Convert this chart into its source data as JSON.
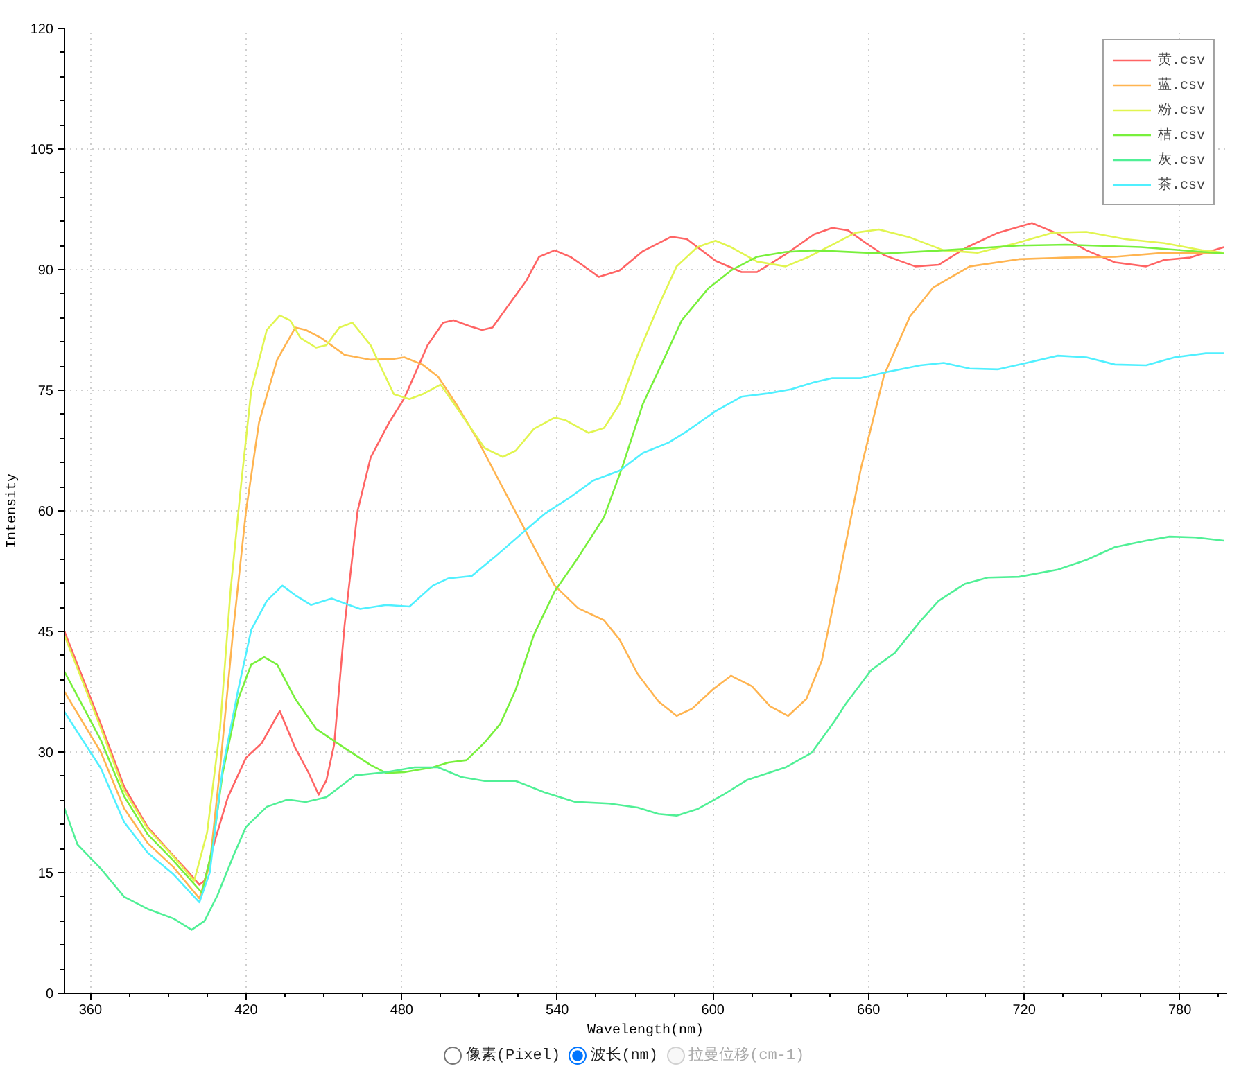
{
  "chart_data": {
    "type": "line",
    "xlabel": "Wavelength(nm)",
    "ylabel": "Intensity",
    "xlim": [
      350,
      798
    ],
    "ylim": [
      0,
      120
    ],
    "xticks": [
      360,
      420,
      480,
      540,
      600,
      660,
      720,
      780
    ],
    "yticks": [
      0,
      15,
      30,
      45,
      60,
      75,
      90,
      105,
      120
    ],
    "grid": true,
    "legend": "top right",
    "line_style": "solid",
    "annotations": [
      "像素(Pixel)",
      "波长(nm)",
      "拉曼位移(cm-1)"
    ],
    "series": [
      {
        "name": "黄.csv",
        "color": "#ff6464",
        "x": [
          350,
          364,
          373,
          382,
          392,
          398,
          402,
          404,
          408,
          413,
          420,
          426,
          433,
          439,
          444,
          448,
          451,
          454,
          458,
          463,
          468,
          475,
          481,
          490,
          496,
          500,
          506,
          511,
          515,
          521,
          528,
          533,
          539,
          545,
          550,
          556,
          564,
          573,
          584,
          590,
          601,
          611,
          617,
          628,
          639,
          646,
          652,
          659,
          666,
          678,
          687,
          698,
          710,
          723,
          732,
          744,
          755,
          767,
          774,
          784,
          797
        ],
        "values": [
          45,
          33.5,
          25.7,
          20.7,
          17.1,
          15,
          13.5,
          14,
          19,
          24.4,
          29.3,
          31.1,
          35.1,
          30.5,
          27.5,
          24.7,
          26.5,
          31,
          45.8,
          60,
          66.6,
          70.9,
          74,
          80.6,
          83.4,
          83.7,
          83,
          82.5,
          82.8,
          85.5,
          88.6,
          91.6,
          92.4,
          91.6,
          90.5,
          89.1,
          89.9,
          92.3,
          94.1,
          93.8,
          91.1,
          89.7,
          89.7,
          91.9,
          94.4,
          95.2,
          94.9,
          93.3,
          91.8,
          90.4,
          90.6,
          92.8,
          94.6,
          95.8,
          94.6,
          92.4,
          90.9,
          90.4,
          91.2,
          91.5,
          92.8
        ]
      },
      {
        "name": "蓝.csv",
        "color": "#ffb450",
        "x": [
          350,
          364,
          373,
          382,
          392,
          402,
          406,
          410,
          415,
          420,
          425,
          432,
          439,
          443,
          449,
          458,
          468,
          477,
          481,
          488,
          494,
          501,
          509,
          516,
          524,
          532,
          539,
          548,
          558,
          564,
          571,
          579,
          586,
          592,
          600,
          607,
          615,
          622,
          629,
          636,
          642,
          649,
          657,
          666,
          676,
          685,
          699,
          718,
          736,
          755,
          774,
          797
        ],
        "values": [
          37.5,
          30,
          23,
          18.7,
          15.7,
          11.8,
          16,
          28,
          45,
          60,
          71,
          78.8,
          82.8,
          82.5,
          81.5,
          79.4,
          78.8,
          78.9,
          79.1,
          78.2,
          76.7,
          73.3,
          69,
          64.7,
          59.8,
          54.9,
          50.7,
          47.9,
          46.4,
          44,
          39.7,
          36.3,
          34.5,
          35.4,
          37.8,
          39.5,
          38.2,
          35.7,
          34.5,
          36.6,
          41.4,
          52.4,
          65.2,
          76.9,
          84.2,
          87.8,
          90.4,
          91.3,
          91.5,
          91.6,
          92.1,
          92
        ]
      },
      {
        "name": "粉.csv",
        "color": "#e1f550",
        "x": [
          350,
          364,
          373,
          382,
          392,
          400,
          405,
          410,
          414,
          418,
          422,
          428,
          433,
          437,
          441,
          447,
          451,
          456,
          461,
          468,
          477,
          483,
          488,
          495,
          503,
          512,
          519,
          524,
          531,
          539,
          543,
          552,
          558,
          564,
          571,
          579,
          586,
          594,
          601,
          607,
          617,
          628,
          637,
          646,
          655,
          664,
          676,
          689,
          702,
          717,
          731,
          744,
          759,
          774,
          789,
          797
        ],
        "values": [
          44.5,
          33,
          25.2,
          20.5,
          17,
          14,
          20,
          33,
          50,
          63,
          75,
          82.5,
          84.3,
          83.7,
          81.5,
          80.3,
          80.6,
          82.8,
          83.4,
          80.6,
          74.5,
          73.9,
          74.5,
          75.7,
          72,
          67.8,
          66.7,
          67.5,
          70.2,
          71.6,
          71.3,
          69.7,
          70.3,
          73.3,
          79.4,
          85.5,
          90.4,
          92.8,
          93.6,
          92.8,
          91,
          90.4,
          91.6,
          93.1,
          94.6,
          95,
          94,
          92.4,
          92.1,
          93.3,
          94.6,
          94.7,
          93.8,
          93.3,
          92.4,
          92.1
        ]
      },
      {
        "name": "桔.csv",
        "color": "#78f03c",
        "x": [
          350,
          364,
          373,
          382,
          392,
          403,
          407,
          411,
          417,
          422,
          427,
          432,
          439,
          447,
          458,
          468,
          474,
          481,
          492,
          498,
          505,
          512,
          518,
          524,
          531,
          539,
          547,
          558,
          565,
          573,
          581,
          588,
          598,
          607,
          617,
          628,
          639,
          666,
          689,
          718,
          736,
          765,
          797
        ],
        "values": [
          40,
          31.5,
          24.5,
          19.8,
          16.5,
          12.5,
          18,
          27.4,
          36.6,
          40.9,
          41.8,
          40.9,
          36.6,
          32.9,
          30.5,
          28.4,
          27.4,
          27.5,
          28.1,
          28.7,
          29,
          31.2,
          33.5,
          37.8,
          44.6,
          50,
          53.7,
          59.2,
          65.4,
          73.3,
          78.8,
          83.7,
          87.6,
          89.9,
          91.6,
          92.2,
          92.4,
          92,
          92.4,
          93,
          93.1,
          92.8,
          92
        ]
      },
      {
        "name": "灰.csv",
        "color": "#50f096",
        "x": [
          350,
          355,
          364,
          373,
          382,
          392,
          399,
          404,
          409,
          415,
          420,
          428,
          436,
          443,
          451,
          462,
          474,
          485,
          494,
          503,
          512,
          524,
          535,
          547,
          560,
          571,
          579,
          586,
          594,
          604,
          613,
          628,
          638,
          647,
          651,
          661,
          670,
          680,
          687,
          697,
          706,
          718,
          733,
          744,
          755,
          767,
          776,
          786,
          797
        ],
        "values": [
          23,
          18.5,
          15.5,
          12,
          10.5,
          9.3,
          7.9,
          9,
          12.2,
          17,
          20.7,
          23.2,
          24.1,
          23.8,
          24.4,
          27.1,
          27.5,
          28.1,
          28.1,
          26.9,
          26.4,
          26.4,
          25,
          23.8,
          23.6,
          23.1,
          22.3,
          22.1,
          22.9,
          24.7,
          26.5,
          28.1,
          29.9,
          33.9,
          35.9,
          40.2,
          42.3,
          46.3,
          48.8,
          50.9,
          51.7,
          51.8,
          52.7,
          53.9,
          55.5,
          56.3,
          56.8,
          56.7,
          56.3
        ]
      },
      {
        "name": "茶.csv",
        "color": "#50f0ff",
        "x": [
          350,
          364,
          373,
          382,
          392,
          402,
          406,
          411,
          417,
          422,
          428,
          434,
          439,
          445,
          453,
          464,
          474,
          483,
          492,
          498,
          507,
          516,
          526,
          535,
          545,
          554,
          564,
          573,
          583,
          590,
          601,
          611,
          621,
          630,
          639,
          646,
          657,
          666,
          680,
          689,
          699,
          710,
          721,
          733,
          744,
          755,
          767,
          778,
          790,
          797
        ],
        "values": [
          35,
          28,
          21.3,
          17.5,
          14.8,
          11.3,
          15,
          28,
          37.8,
          45.2,
          48.8,
          50.7,
          49.5,
          48.3,
          49.1,
          47.8,
          48.3,
          48.1,
          50.7,
          51.6,
          51.9,
          54.3,
          57.1,
          59.6,
          61.7,
          63.8,
          65,
          67.2,
          68.5,
          69.9,
          72.4,
          74.2,
          74.6,
          75.1,
          76,
          76.5,
          76.5,
          77.2,
          78.1,
          78.4,
          77.7,
          77.6,
          78.4,
          79.3,
          79.1,
          78.2,
          78.1,
          79.1,
          79.6,
          79.6
        ]
      }
    ]
  }
}
